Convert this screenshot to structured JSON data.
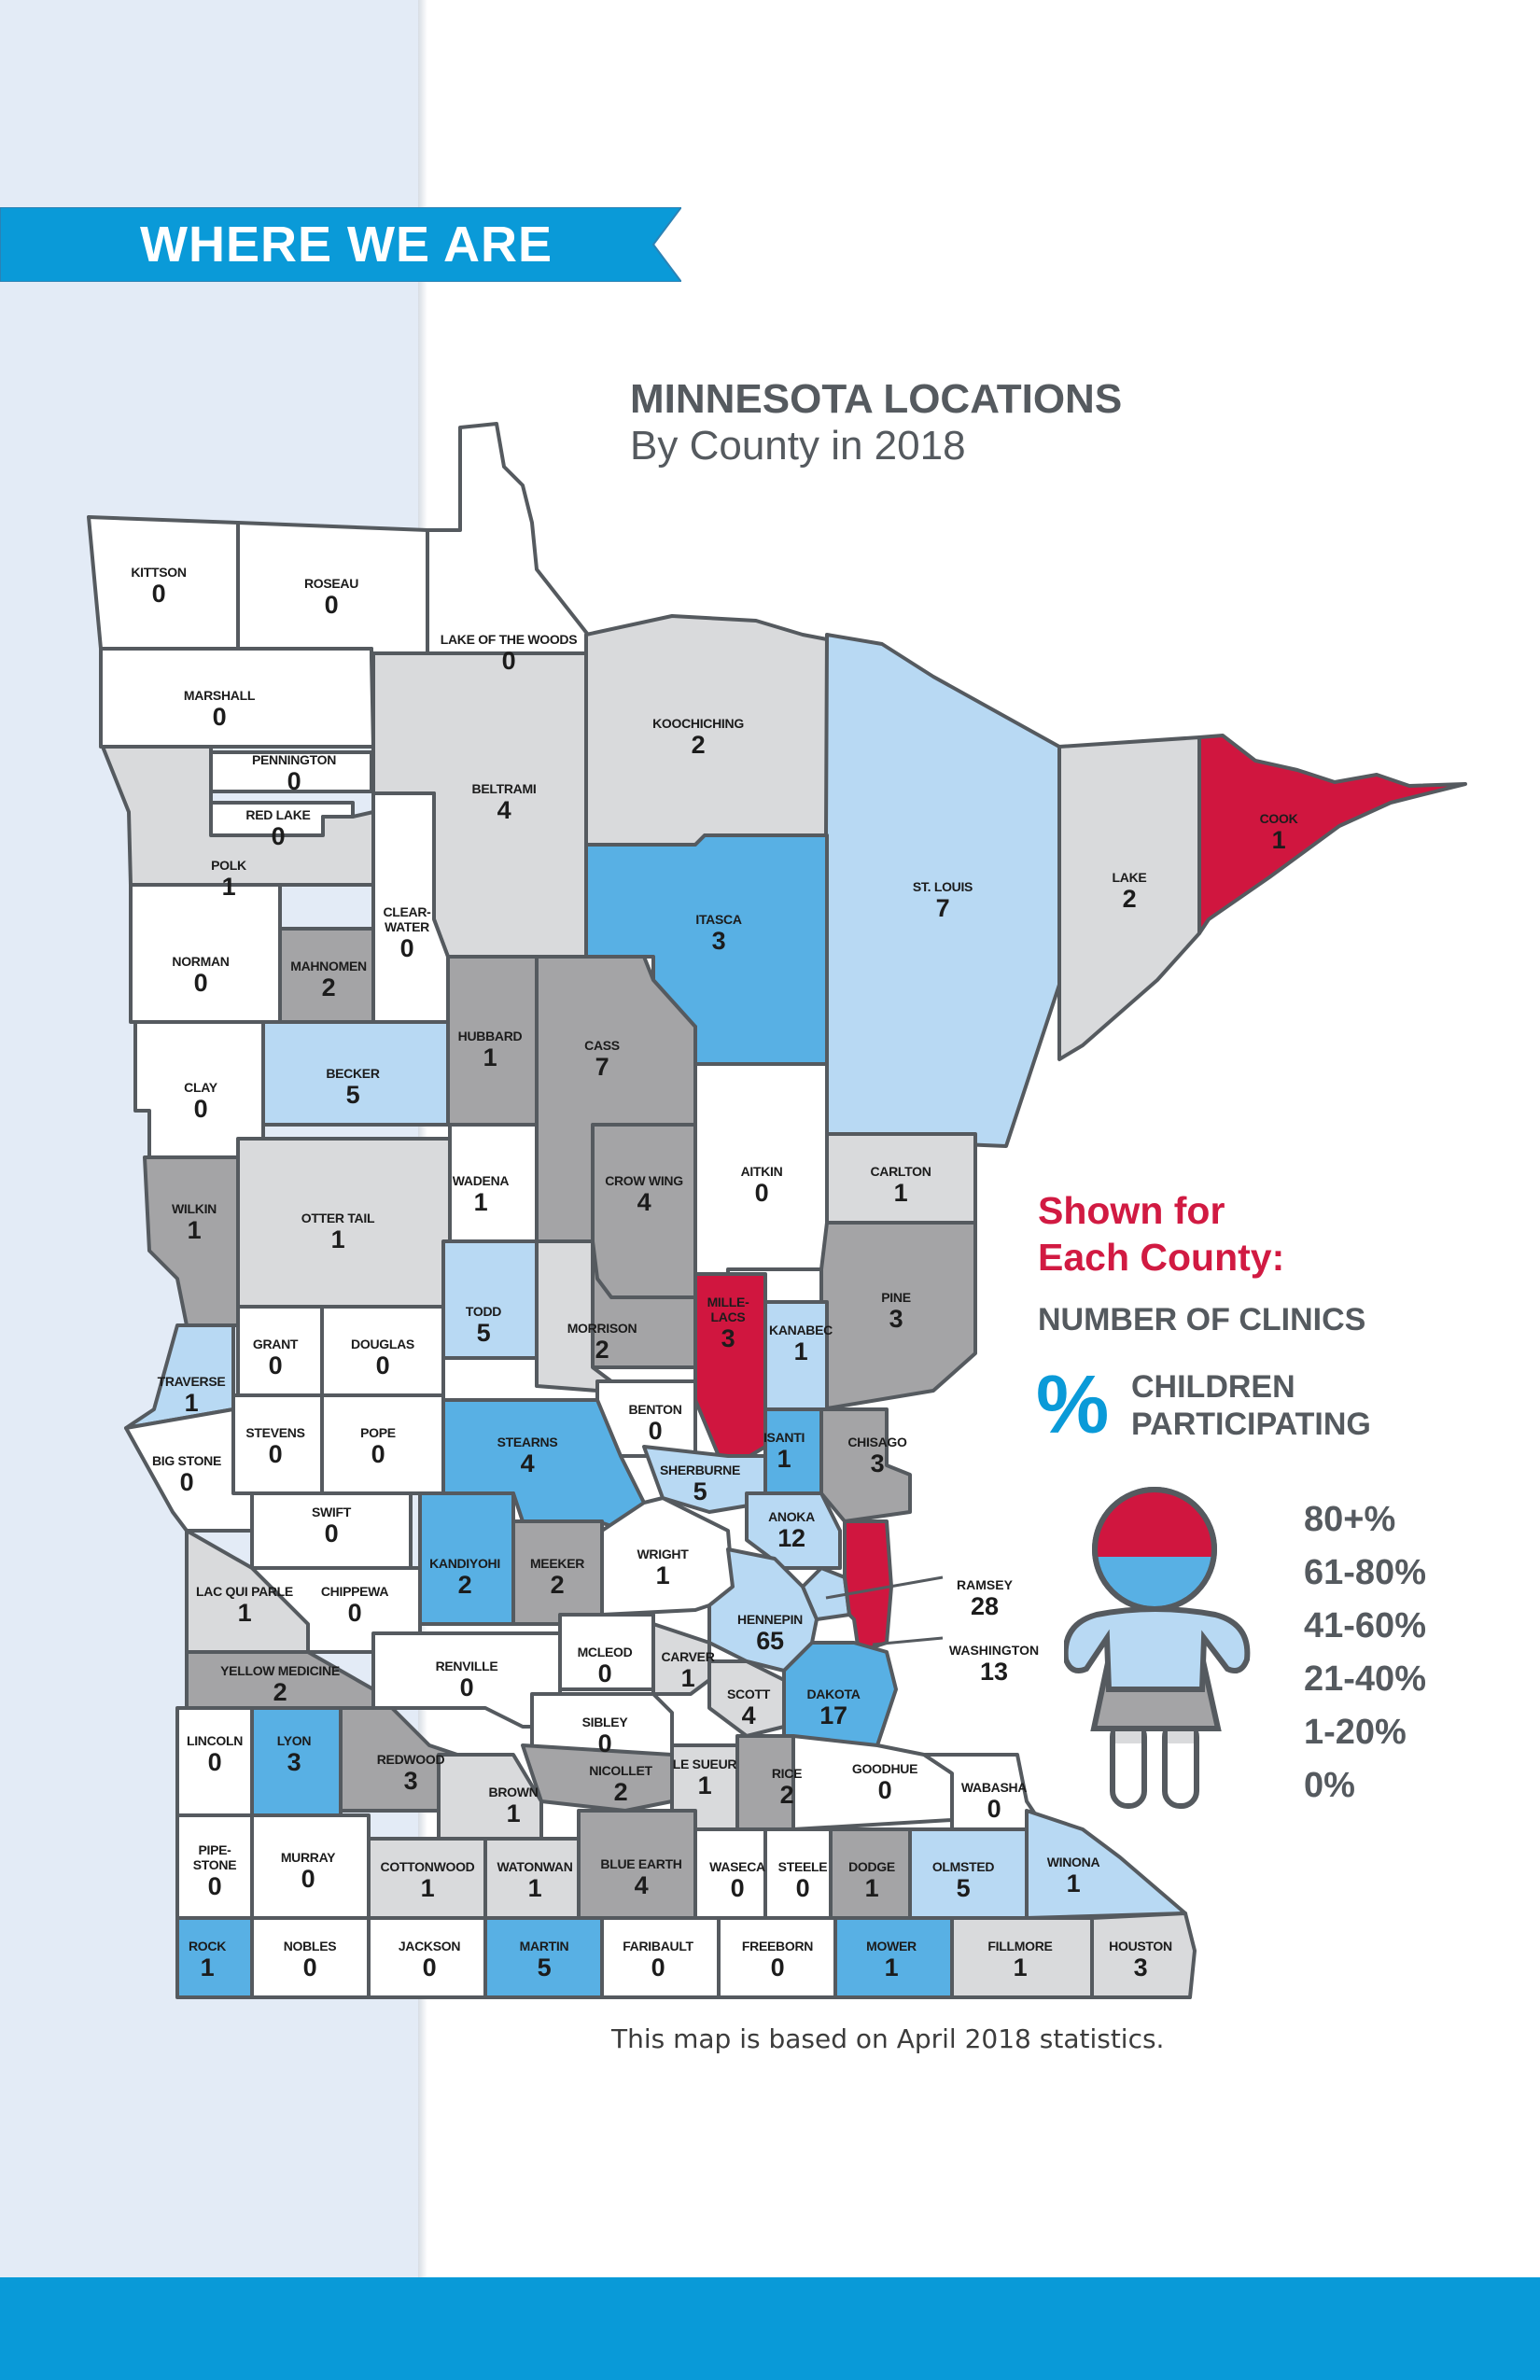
{
  "banner": {
    "title": "WHERE WE ARE"
  },
  "title": {
    "line1": "MINNESOTA LOCATIONS",
    "line2": "By County in 2018"
  },
  "legend": {
    "heading_line1": "Shown for",
    "heading_line2": "Each County:",
    "clinics_label": "NUMBER OF CLINICS",
    "percent_symbol": "%",
    "children_label_line1": "CHILDREN",
    "children_label_line2": "PARTICIPATING",
    "scale": [
      "80+%",
      "61-80%",
      "41-60%",
      "21-40%",
      "1-20%",
      "0%"
    ],
    "colors": {
      "80+%": "#d0163f",
      "61-80%": "#58b0e4",
      "41-60%": "#b8d9f3",
      "21-40%": "#a4a4a6",
      "1-20%": "#d9dadc",
      "0%": "#ffffff"
    }
  },
  "note": "This map is based on April 2018 statistics.",
  "counties": [
    {
      "name": "KITTSON",
      "clinics": "0",
      "category": "0%"
    },
    {
      "name": "ROSEAU",
      "clinics": "0",
      "category": "0%"
    },
    {
      "name": "LAKE OF THE WOODS",
      "clinics": "0",
      "category": "0%"
    },
    {
      "name": "MARSHALL",
      "clinics": "0",
      "category": "0%"
    },
    {
      "name": "PENNINGTON",
      "clinics": "0",
      "category": "0%"
    },
    {
      "name": "RED LAKE",
      "clinics": "0",
      "category": "0%"
    },
    {
      "name": "POLK",
      "clinics": "1",
      "category": "1-20%"
    },
    {
      "name": "BELTRAMI",
      "clinics": "4",
      "category": "1-20%"
    },
    {
      "name": "KOOCHICHING",
      "clinics": "2",
      "category": "1-20%"
    },
    {
      "name": "ST. LOUIS",
      "clinics": "7",
      "category": "41-60%"
    },
    {
      "name": "LAKE",
      "clinics": "2",
      "category": "1-20%"
    },
    {
      "name": "COOK",
      "clinics": "1",
      "category": "80+%"
    },
    {
      "name": "NORMAN",
      "clinics": "0",
      "category": "0%"
    },
    {
      "name": "MAHNOMEN",
      "clinics": "2",
      "category": "21-40%"
    },
    {
      "name": "CLEAR-\nWATER",
      "clinics": "0",
      "category": "0%"
    },
    {
      "name": "ITASCA",
      "clinics": "3",
      "category": "61-80%"
    },
    {
      "name": "CLAY",
      "clinics": "0",
      "category": "0%"
    },
    {
      "name": "BECKER",
      "clinics": "5",
      "category": "41-60%"
    },
    {
      "name": "HUBBARD",
      "clinics": "1",
      "category": "21-40%"
    },
    {
      "name": "CASS",
      "clinics": "7",
      "category": "21-40%"
    },
    {
      "name": "AITKIN",
      "clinics": "0",
      "category": "0%"
    },
    {
      "name": "CARLTON",
      "clinics": "1",
      "category": "1-20%"
    },
    {
      "name": "WILKIN",
      "clinics": "1",
      "category": "21-40%"
    },
    {
      "name": "OTTER TAIL",
      "clinics": "1",
      "category": "1-20%"
    },
    {
      "name": "WADENA",
      "clinics": "1",
      "category": "0%"
    },
    {
      "name": "CROW WING",
      "clinics": "4",
      "category": "21-40%"
    },
    {
      "name": "PINE",
      "clinics": "3",
      "category": "21-40%"
    },
    {
      "name": "TODD",
      "clinics": "5",
      "category": "41-60%"
    },
    {
      "name": "MILLE-\nLACS",
      "clinics": "3",
      "category": "80+%"
    },
    {
      "name": "KANABEC",
      "clinics": "1",
      "category": "41-60%"
    },
    {
      "name": "GRANT",
      "clinics": "0",
      "category": "0%"
    },
    {
      "name": "DOUGLAS",
      "clinics": "0",
      "category": "0%"
    },
    {
      "name": "MORRISON",
      "clinics": "2",
      "category": "1-20%"
    },
    {
      "name": "TRAVERSE",
      "clinics": "1",
      "category": "41-60%"
    },
    {
      "name": "BENTON",
      "clinics": "0",
      "category": "0%"
    },
    {
      "name": "STEVENS",
      "clinics": "0",
      "category": "0%"
    },
    {
      "name": "POPE",
      "clinics": "0",
      "category": "0%"
    },
    {
      "name": "STEARNS",
      "clinics": "4",
      "category": "61-80%"
    },
    {
      "name": "ISANTI",
      "clinics": "1",
      "category": "61-80%"
    },
    {
      "name": "CHISAGO",
      "clinics": "3",
      "category": "21-40%"
    },
    {
      "name": "BIG STONE",
      "clinics": "0",
      "category": "0%"
    },
    {
      "name": "SHERBURNE",
      "clinics": "5",
      "category": "41-60%"
    },
    {
      "name": "SWIFT",
      "clinics": "0",
      "category": "0%"
    },
    {
      "name": "ANOKA",
      "clinics": "12",
      "category": "41-60%"
    },
    {
      "name": "KANDIYOHI",
      "clinics": "2",
      "category": "61-80%"
    },
    {
      "name": "MEEKER",
      "clinics": "2",
      "category": "21-40%"
    },
    {
      "name": "WRIGHT",
      "clinics": "1",
      "category": "0%"
    },
    {
      "name": "LAC QUI PARLE",
      "clinics": "1",
      "category": "1-20%"
    },
    {
      "name": "CHIPPEWA",
      "clinics": "0",
      "category": "0%"
    },
    {
      "name": "RAMSEY",
      "clinics": "28",
      "category": "41-60%"
    },
    {
      "name": "HENNEPIN",
      "clinics": "65",
      "category": "41-60%"
    },
    {
      "name": "WASHINGTON",
      "clinics": "13",
      "category": "80+%"
    },
    {
      "name": "MCLEOD",
      "clinics": "0",
      "category": "0%"
    },
    {
      "name": "CARVER",
      "clinics": "1",
      "category": "1-20%"
    },
    {
      "name": "RENVILLE",
      "clinics": "0",
      "category": "0%"
    },
    {
      "name": "YELLOW MEDICINE",
      "clinics": "2",
      "category": "21-40%"
    },
    {
      "name": "SCOTT",
      "clinics": "4",
      "category": "1-20%"
    },
    {
      "name": "DAKOTA",
      "clinics": "17",
      "category": "61-80%"
    },
    {
      "name": "SIBLEY",
      "clinics": "0",
      "category": "0%"
    },
    {
      "name": "LINCOLN",
      "clinics": "0",
      "category": "0%"
    },
    {
      "name": "LYON",
      "clinics": "3",
      "category": "61-80%"
    },
    {
      "name": "REDWOOD",
      "clinics": "3",
      "category": "21-40%"
    },
    {
      "name": "NICOLLET",
      "clinics": "2",
      "category": "21-40%"
    },
    {
      "name": "LE SUEUR",
      "clinics": "1",
      "category": "1-20%"
    },
    {
      "name": "RICE",
      "clinics": "2",
      "category": "21-40%"
    },
    {
      "name": "GOODHUE",
      "clinics": "0",
      "category": "0%"
    },
    {
      "name": "WABASHA",
      "clinics": "0",
      "category": "0%"
    },
    {
      "name": "BROWN",
      "clinics": "1",
      "category": "1-20%"
    },
    {
      "name": "PIPE-\nSTONE",
      "clinics": "0",
      "category": "0%"
    },
    {
      "name": "MURRAY",
      "clinics": "0",
      "category": "0%"
    },
    {
      "name": "COTTONWOOD",
      "clinics": "1",
      "category": "1-20%"
    },
    {
      "name": "WATONWAN",
      "clinics": "1",
      "category": "1-20%"
    },
    {
      "name": "BLUE EARTH",
      "clinics": "4",
      "category": "21-40%"
    },
    {
      "name": "WASECA",
      "clinics": "0",
      "category": "0%"
    },
    {
      "name": "STEELE",
      "clinics": "0",
      "category": "0%"
    },
    {
      "name": "DODGE",
      "clinics": "1",
      "category": "21-40%"
    },
    {
      "name": "OLMSTED",
      "clinics": "5",
      "category": "41-60%"
    },
    {
      "name": "WINONA",
      "clinics": "1",
      "category": "41-60%"
    },
    {
      "name": "ROCK",
      "clinics": "1",
      "category": "61-80%"
    },
    {
      "name": "NOBLES",
      "clinics": "0",
      "category": "0%"
    },
    {
      "name": "JACKSON",
      "clinics": "0",
      "category": "0%"
    },
    {
      "name": "MARTIN",
      "clinics": "5",
      "category": "61-80%"
    },
    {
      "name": "FARIBAULT",
      "clinics": "0",
      "category": "0%"
    },
    {
      "name": "FREEBORN",
      "clinics": "0",
      "category": "0%"
    },
    {
      "name": "MOWER",
      "clinics": "1",
      "category": "61-80%"
    },
    {
      "name": "FILLMORE",
      "clinics": "1",
      "category": "1-20%"
    },
    {
      "name": "HOUSTON",
      "clinics": "3",
      "category": "1-20%"
    }
  ]
}
